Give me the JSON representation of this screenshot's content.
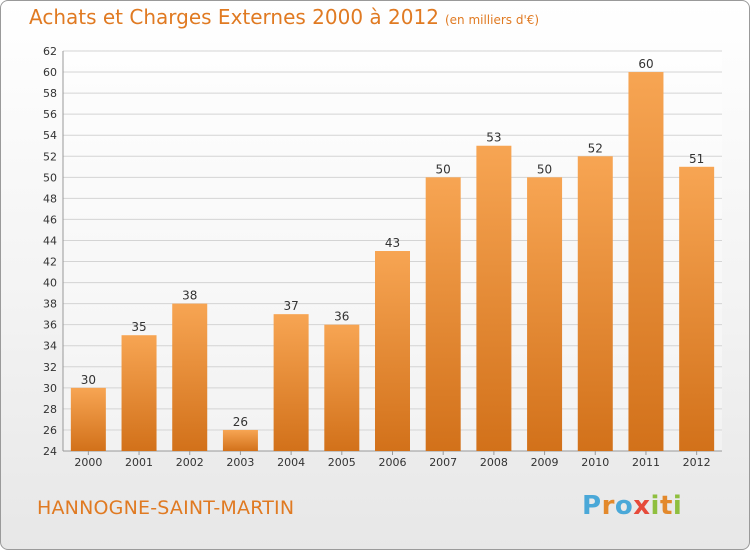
{
  "chart_data": {
    "type": "bar",
    "title": "Achats et Charges Externes 2000 à 2012",
    "subtitle": "(en milliers d'€)",
    "categories": [
      "2000",
      "2001",
      "2002",
      "2003",
      "2004",
      "2005",
      "2006",
      "2007",
      "2008",
      "2009",
      "2010",
      "2011",
      "2012"
    ],
    "values": [
      30,
      35,
      38,
      26,
      37,
      36,
      43,
      50,
      53,
      50,
      52,
      60,
      51
    ],
    "ylim": [
      24,
      62
    ],
    "yticks": [
      24,
      26,
      28,
      30,
      32,
      34,
      36,
      38,
      40,
      42,
      44,
      46,
      48,
      50,
      52,
      54,
      56,
      58,
      60,
      62
    ],
    "grid": "horizontal",
    "bar_color_top": "#f7a553",
    "bar_color_bottom": "#d2711a"
  },
  "footer": {
    "city": "HANNOGNE-SAINT-MARTIN",
    "logo_letters": [
      "P",
      "r",
      "o",
      "x",
      "i",
      "t",
      "i"
    ],
    "logo_colors": [
      "#4aa8d8",
      "#e3892b",
      "#4aa8d8",
      "#e64a3a",
      "#8fbf3f",
      "#e3892b",
      "#8fbf3f"
    ]
  }
}
